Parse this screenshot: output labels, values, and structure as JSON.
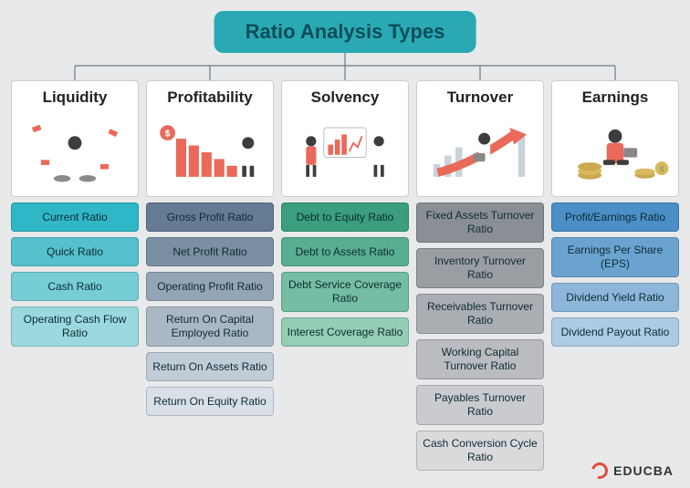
{
  "title": "Ratio Analysis Types",
  "title_bg": "#2aa9b4",
  "background": "#e8e9eb",
  "connector_color": "#6c7a80",
  "logo": {
    "text": "EDUCBA",
    "accent": "#e24b3b"
  },
  "columns": [
    {
      "header": "Liquidity",
      "item_colors": [
        "#2fb7c7",
        "#54c1cc",
        "#76cdd6",
        "#99d9df"
      ],
      "items": [
        "Current Ratio",
        "Quick Ratio",
        "Cash Ratio",
        "Operating Cash Flow Ratio"
      ],
      "illus_accent": "#e9695a"
    },
    {
      "header": "Profitability",
      "item_colors": [
        "#647b93",
        "#7b8fa4",
        "#93a4b5",
        "#aab8c6",
        "#c2ccd7",
        "#d9e0e8"
      ],
      "items": [
        "Gross Profit Ratio",
        "Net Profit Ratio",
        "Operating Profit Ratio",
        "Return On Capital Employed Ratio",
        "Return On Assets Ratio",
        "Return On Equity Ratio"
      ],
      "illus_accent": "#e9695a"
    },
    {
      "header": "Solvency",
      "item_colors": [
        "#3a9e7f",
        "#58ae91",
        "#76bea3",
        "#94ceb5"
      ],
      "items": [
        "Debt to Equity Ratio",
        "Debt to Assets Ratio",
        "Debt Service Coverage Ratio",
        "Interest Coverage Ratio"
      ],
      "illus_accent": "#e9695a"
    },
    {
      "header": "Turnover",
      "item_colors": [
        "#8a8f95",
        "#9a9ea3",
        "#aaadb2",
        "#babcc0",
        "#cacbcf",
        "#dadadd"
      ],
      "items": [
        "Fixed Assets Turnover Ratio",
        "Inventory Turnover Ratio",
        "Receivables Turnover Ratio",
        "Working Capital Turnover Ratio",
        "Payables Turnover Ratio",
        "Cash Conversion Cycle Ratio"
      ],
      "illus_accent": "#e9695a"
    },
    {
      "header": "Earnings",
      "item_colors": [
        "#4a8fc7",
        "#6ba3d0",
        "#8cb7da",
        "#adcbe3"
      ],
      "items": [
        "Profit/Earnings Ratio",
        "Earnings Per Share (EPS)",
        "Dividend Yield Ratio",
        "Dividend Payout Ratio"
      ],
      "illus_accent": "#e9695a"
    }
  ],
  "illus_skin": "#3d3d3d",
  "illus_shirt": "#ffffff"
}
